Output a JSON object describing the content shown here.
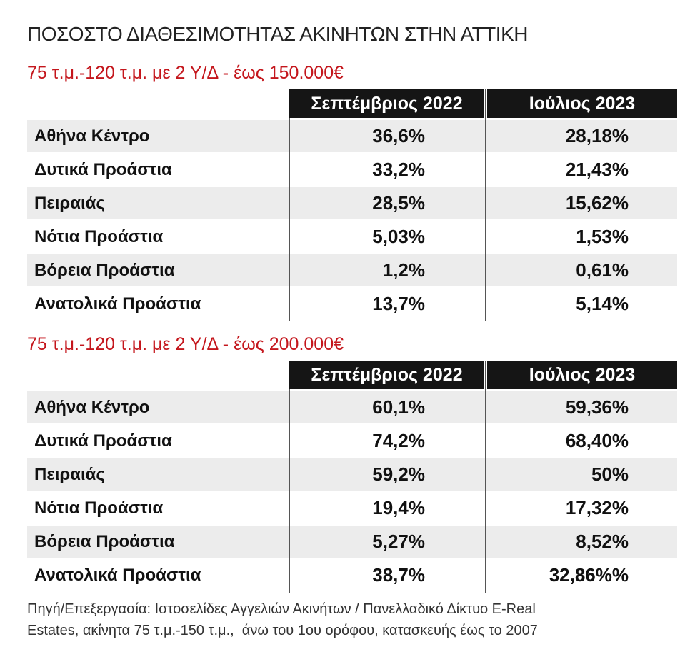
{
  "title": "ΠΟΣΟΣΤΟ ΔΙΑΘΕΣΙΜΟΤΗΤΑΣ ΑΚΙΝΗΤΩΝ ΣΤΗΝ ΑΤΤΙΚΗ",
  "tables": [
    {
      "subtitle": "75 τ.μ.-120 τ.μ. με 2 Υ/Δ - έως 150.000€",
      "header": [
        "Σεπτέμβριος 2022",
        "Ιούλιος 2023"
      ],
      "rows": [
        [
          "Αθήνα Κέντρο",
          "36,6%",
          "28,18%"
        ],
        [
          "Δυτικά Προάστια",
          "33,2%",
          "21,43%"
        ],
        [
          "Πειραιάς",
          "28,5%",
          "15,62%"
        ],
        [
          "Νότια Προάστια",
          "5,03%",
          "1,53%"
        ],
        [
          "Βόρεια Προάστια",
          "1,2%",
          "0,61%"
        ],
        [
          "Ανατολικά Προάστια",
          "13,7%",
          "5,14%"
        ]
      ]
    },
    {
      "subtitle": "75 τ.μ.-120 τ.μ. με 2 Υ/Δ - έως 200.000€",
      "header": [
        "Σεπτέμβριος 2022",
        "Ιούλιος 2023"
      ],
      "rows": [
        [
          "Αθήνα Κέντρο",
          "60,1%",
          "59,36%"
        ],
        [
          "Δυτικά Προάστια",
          "74,2%",
          "68,40%"
        ],
        [
          "Πειραιάς",
          "59,2%",
          "50%"
        ],
        [
          "Νότια Προάστια",
          "19,4%",
          "17,32%"
        ],
        [
          "Βόρεια Προάστια",
          "5,27%",
          "8,52%"
        ],
        [
          "Ανατολικά Προάστια",
          "38,7%",
          "32,86%%"
        ]
      ]
    }
  ],
  "source": [
    "Πηγή/Επεξεργασία: Ιστοσελίδες Αγγελιών Ακινήτων / Πανελλαδικό Δίκτυο E-Real",
    "Estates, ακίνητα 75 τ.μ.-150 τ.μ.,  άνω του 1ου ορόφου, κατασκευής έως το 2007"
  ]
}
